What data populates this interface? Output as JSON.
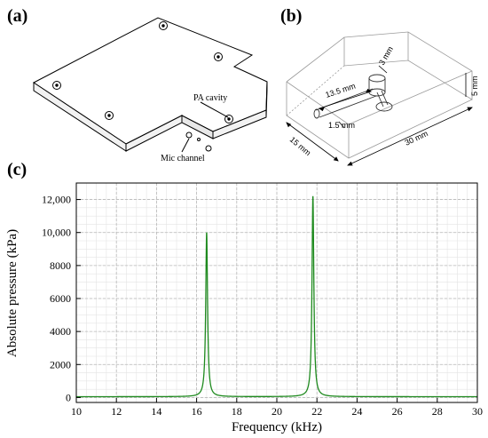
{
  "panels": {
    "a": {
      "label": "(a)",
      "pa_cavity": "PA cavity",
      "mic_channel": "Mic channel"
    },
    "b": {
      "label": "(b)",
      "dim_13_5": "13.5 mm",
      "dim_3": "3 mm",
      "dim_1_5": "1.5 mm",
      "dim_5": "5 mm",
      "dim_15": "15 mm",
      "dim_30": "30 mm"
    },
    "c": {
      "label": "(c)"
    }
  },
  "colors": {
    "series": "#1e8a1e",
    "grid": "#b8b8b8",
    "minor_grid": "#e4e4e4"
  },
  "chart_data": {
    "type": "line",
    "title": "",
    "xlabel": "Frequency (kHz)",
    "ylabel": "Absolute pressure (kPa)",
    "xlim": [
      10,
      30
    ],
    "ylim": [
      -300,
      13000
    ],
    "xticks": [
      10,
      12,
      14,
      16,
      18,
      20,
      22,
      24,
      26,
      28,
      30
    ],
    "yticks": [
      0,
      2000,
      4000,
      6000,
      8000,
      10000,
      12000
    ],
    "ytick_labels": [
      "0",
      "2000",
      "4000",
      "6000",
      "8000",
      "10,000",
      "12,000"
    ],
    "grid": true,
    "series": [
      {
        "color": "#1e8a1e",
        "peaks": [
          {
            "x": 16.5,
            "y": 10000
          },
          {
            "x": 21.8,
            "y": 12200
          }
        ],
        "baseline": 50
      }
    ]
  }
}
